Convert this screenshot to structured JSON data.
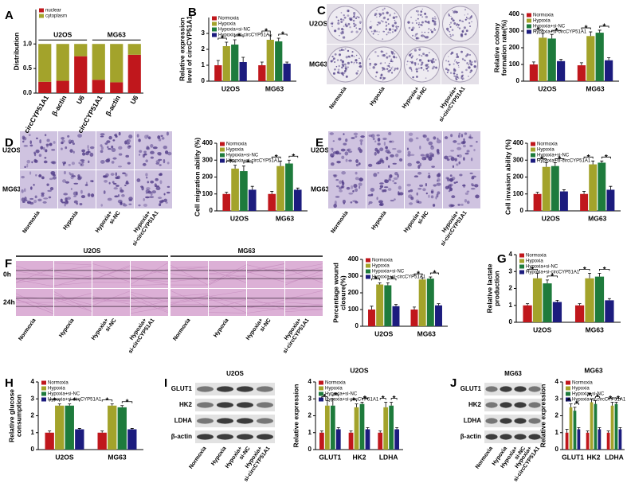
{
  "panel_labels": [
    "A",
    "B",
    "C",
    "D",
    "E",
    "F",
    "G",
    "H",
    "I",
    "J"
  ],
  "images": {
    "C": {
      "rows": [
        "U2OS",
        "MG63"
      ],
      "columns": [
        [
          "Normoxia"
        ],
        [
          "Hypoxia"
        ],
        [
          "Hypoxia+",
          "si-NC"
        ],
        [
          "Hypoxia+",
          "si-circCYP51A1"
        ]
      ]
    },
    "D": {
      "rows": [
        "U2OS",
        "MG63"
      ],
      "columns": [
        [
          "Normoxia"
        ],
        [
          "Hypoxia"
        ],
        [
          "Hypoxia+",
          "si-NC"
        ],
        [
          "Hypoxia+",
          "si-circCYP51A1"
        ]
      ]
    },
    "E": {
      "rows": [
        "U2OS",
        "MG63"
      ],
      "columns": [
        [
          "Normoxia"
        ],
        [
          "Hypoxia"
        ],
        [
          "Hypoxia+",
          "si-NC"
        ],
        [
          "Hypoxia+",
          "si-circCYP51A1"
        ]
      ]
    },
    "F": {
      "groups": [
        "U2OS",
        "MG63"
      ],
      "rows": [
        "0h",
        "24h"
      ],
      "columns": [
        [
          "Normoxia"
        ],
        [
          "Hypoxia"
        ],
        [
          "Hypoxia+",
          "si-NC"
        ],
        [
          "Hypoxia+",
          "si-circCYP51A1"
        ],
        [
          "Normoxia"
        ],
        [
          "Hypoxia"
        ],
        [
          "Hypoxia+",
          "si-NC"
        ],
        [
          "Hypoxia+",
          "si-circCYP51A1"
        ]
      ]
    },
    "I": {
      "title": "U2OS",
      "rows": [
        "GLUT1",
        "HK2",
        "LDHA",
        "β-actin"
      ],
      "columns": [
        [
          "Normoxia"
        ],
        [
          "Hypoxia"
        ],
        [
          "Hypoxia+",
          "si-NC"
        ],
        [
          "Hypoxia+",
          "si-circCYP51A1"
        ]
      ]
    },
    "J": {
      "title": "MG63",
      "rows": [
        "GLUT1",
        "HK2",
        "LDHA",
        "β-actin"
      ],
      "columns": [
        [
          "Normoxia"
        ],
        [
          "Hypoxia"
        ],
        [
          "Hypoxia+",
          "si-NC"
        ],
        [
          "Hypoxia+",
          "si-circCYP51A1"
        ]
      ]
    }
  },
  "chart_data": [
    {
      "type": "stacked_bar",
      "ylabel": [
        "Distribution"
      ],
      "categories": [
        "circCYP51A1",
        "β-actin",
        "U6",
        "circCYP51A1",
        "β-actin",
        "U6"
      ],
      "groups": [
        "U2OS",
        "MG63"
      ],
      "legend": "upper left",
      "series": [
        {
          "name": "nuclear",
          "color": "#c0171c",
          "values": [
            0.23,
            0.25,
            0.75,
            0.27,
            0.22,
            0.78
          ]
        },
        {
          "name": "cytoplasm",
          "color": "#a3a32b",
          "values": [
            0.77,
            0.75,
            0.25,
            0.73,
            0.78,
            0.22
          ]
        }
      ],
      "ylim": [
        0,
        1.7
      ],
      "yticks": [
        {
          "value": 0,
          "label": "0.0"
        },
        {
          "value": 0.5,
          "label": "0.5"
        },
        {
          "value": 1,
          "label": "1.0"
        }
      ]
    },
    {
      "type": "bar",
      "ylabel": [
        "Relative expression",
        "level of circCYP51A1"
      ],
      "categories": [
        "U2OS",
        "MG63"
      ],
      "legend": "upper left",
      "series": [
        {
          "name": "Normoxia",
          "color": "#c0171c",
          "values": [
            1.0,
            1.0
          ],
          "errors": [
            0.3,
            0.2
          ]
        },
        {
          "name": "Hypoxia",
          "color": "#a3a32b",
          "values": [
            2.2,
            2.6
          ],
          "errors": [
            0.25,
            0.3
          ]
        },
        {
          "name": "Hypoxia+si-NC",
          "color": "#1e7b3c",
          "values": [
            2.3,
            2.5
          ],
          "errors": [
            0.3,
            0.2
          ]
        },
        {
          "name": "Hypoxia+si-circCYP51A1",
          "color": "#1c1c7e",
          "values": [
            1.2,
            1.1
          ],
          "errors": [
            0.3,
            0.1
          ]
        }
      ],
      "significance": [
        "*",
        "*",
        "*",
        "*"
      ],
      "ylim": [
        0,
        4
      ],
      "yticks": [
        0,
        1,
        2,
        3
      ]
    },
    {
      "type": "bar",
      "ylabel": [
        "Relative colony",
        "formation rate(%)"
      ],
      "categories": [
        "U2OS",
        "MG63"
      ],
      "legend": "upper left",
      "series": [
        {
          "name": "Normoxia",
          "color": "#c0171c",
          "values": [
            100,
            95
          ],
          "errors": [
            15,
            15
          ]
        },
        {
          "name": "Hypoxia",
          "color": "#a3a32b",
          "values": [
            260,
            270
          ],
          "errors": [
            25,
            25
          ]
        },
        {
          "name": "Hypoxia+si-NC",
          "color": "#1e7b3c",
          "values": [
            255,
            290
          ],
          "errors": [
            25,
            15
          ]
        },
        {
          "name": "Hypoxia+si-circCYP51A1",
          "color": "#1c1c7e",
          "values": [
            120,
            125
          ],
          "errors": [
            10,
            15
          ]
        }
      ],
      "significance": [
        "*",
        "*",
        "*",
        "*"
      ],
      "ylim": [
        0,
        400
      ],
      "yticks": [
        0,
        100,
        200,
        300,
        400
      ]
    },
    {
      "type": "bar",
      "ylabel": [
        "Cell migration ability (%)"
      ],
      "categories": [
        "U2OS",
        "MG63"
      ],
      "legend": "upper left",
      "series": [
        {
          "name": "Normoxia",
          "color": "#c0171c",
          "values": [
            100,
            100
          ],
          "errors": [
            10,
            15
          ]
        },
        {
          "name": "Hypoxia",
          "color": "#a3a32b",
          "values": [
            250,
            265
          ],
          "errors": [
            20,
            30
          ]
        },
        {
          "name": "Hypoxia+si-NC",
          "color": "#1e7b3c",
          "values": [
            235,
            280
          ],
          "errors": [
            30,
            20
          ]
        },
        {
          "name": "Hypoxia+si-circCYP51A1",
          "color": "#1c1c7e",
          "values": [
            125,
            125
          ],
          "errors": [
            20,
            10
          ]
        }
      ],
      "significance": [
        "*",
        "*",
        "*",
        "*"
      ],
      "ylim": [
        0,
        400
      ],
      "yticks": [
        0,
        100,
        200,
        300,
        400
      ]
    },
    {
      "type": "bar",
      "ylabel": [
        "Cell invasion ability (%)"
      ],
      "categories": [
        "U2OS",
        "MG63"
      ],
      "legend": "upper left",
      "series": [
        {
          "name": "Normoxia",
          "color": "#c0171c",
          "values": [
            100,
            100
          ],
          "errors": [
            10,
            15
          ]
        },
        {
          "name": "Hypoxia",
          "color": "#a3a32b",
          "values": [
            260,
            275
          ],
          "errors": [
            25,
            20
          ]
        },
        {
          "name": "Hypoxia+si-NC",
          "color": "#1e7b3c",
          "values": [
            265,
            285
          ],
          "errors": [
            20,
            10
          ]
        },
        {
          "name": "Hypoxia+si-circCYP51A1",
          "color": "#1c1c7e",
          "values": [
            115,
            125
          ],
          "errors": [
            10,
            20
          ]
        }
      ],
      "significance": [
        "*",
        "*",
        "*",
        "*"
      ],
      "ylim": [
        0,
        400
      ],
      "yticks": [
        0,
        100,
        200,
        300,
        400
      ]
    },
    {
      "type": "bar",
      "ylabel": [
        "Percentage wound",
        "closure(%)"
      ],
      "categories": [
        "U2OS",
        "MG63"
      ],
      "legend": "upper left",
      "series": [
        {
          "name": "Normoxia",
          "color": "#c0171c",
          "values": [
            100,
            100
          ],
          "errors": [
            20,
            15
          ]
        },
        {
          "name": "Hypoxia",
          "color": "#a3a32b",
          "values": [
            250,
            280
          ],
          "errors": [
            10,
            10
          ]
        },
        {
          "name": "Hypoxia+si-NC",
          "color": "#1e7b3c",
          "values": [
            245,
            285
          ],
          "errors": [
            15,
            10
          ]
        },
        {
          "name": "Hypoxia+si-circCYP51A1",
          "color": "#1c1c7e",
          "values": [
            120,
            125
          ],
          "errors": [
            10,
            10
          ]
        }
      ],
      "significance": [
        "*",
        "*",
        "*",
        "*"
      ],
      "ylim": [
        0,
        400
      ],
      "yticks": [
        0,
        100,
        200,
        300,
        400
      ]
    },
    {
      "type": "bar",
      "ylabel": [
        "Relative lactate",
        "production"
      ],
      "categories": [
        "U2OS",
        "MG63"
      ],
      "legend": "upper left",
      "series": [
        {
          "name": "Normoxia",
          "color": "#c0171c",
          "values": [
            1.0,
            1.0
          ],
          "errors": [
            0.1,
            0.1
          ]
        },
        {
          "name": "Hypoxia",
          "color": "#a3a32b",
          "values": [
            2.6,
            2.6
          ],
          "errors": [
            0.3,
            0.3
          ]
        },
        {
          "name": "Hypoxia+si-NC",
          "color": "#1e7b3c",
          "values": [
            2.3,
            2.7
          ],
          "errors": [
            0.2,
            0.2
          ]
        },
        {
          "name": "Hypoxia+si-circCYP51A1",
          "color": "#1c1c7e",
          "values": [
            1.2,
            1.3
          ],
          "errors": [
            0.1,
            0.1
          ]
        }
      ],
      "significance": [
        "*",
        "*",
        "*",
        "*"
      ],
      "ylim": [
        0,
        4
      ],
      "yticks": [
        0,
        1,
        2,
        3,
        4
      ]
    },
    {
      "type": "bar",
      "ylabel": [
        "Relative glucose",
        "consumption"
      ],
      "categories": [
        "U2OS",
        "MG63"
      ],
      "legend": "upper left",
      "series": [
        {
          "name": "Normoxia",
          "color": "#c0171c",
          "values": [
            1.0,
            1.0
          ],
          "errors": [
            0.1,
            0.1
          ]
        },
        {
          "name": "Hypoxia",
          "color": "#a3a32b",
          "values": [
            2.6,
            2.6
          ],
          "errors": [
            0.1,
            0.1
          ]
        },
        {
          "name": "Hypoxia+si-NC",
          "color": "#1e7b3c",
          "values": [
            2.6,
            2.5
          ],
          "errors": [
            0.1,
            0.1
          ]
        },
        {
          "name": "Hypoxia+si-circCYP51A1",
          "color": "#1c1c7e",
          "values": [
            1.2,
            1.2
          ],
          "errors": [
            0.05,
            0.05
          ]
        }
      ],
      "significance": [
        "*",
        "*",
        "*",
        "*"
      ],
      "ylim": [
        0,
        4
      ],
      "yticks": [
        0,
        1,
        2,
        3,
        4
      ]
    },
    {
      "type": "bar",
      "title": "U2OS",
      "ylabel": [
        "Relative expression"
      ],
      "categories": [
        "GLUT1",
        "HK2",
        "LDHA"
      ],
      "legend": "upper left",
      "series": [
        {
          "name": "Normoxia",
          "color": "#c0171c",
          "values": [
            1.0,
            1.0,
            1.0
          ],
          "errors": [
            0.1,
            0.1,
            0.1
          ]
        },
        {
          "name": "Hypoxia",
          "color": "#a3a32b",
          "values": [
            2.6,
            2.5,
            2.5
          ],
          "errors": [
            0.3,
            0.2,
            0.3
          ]
        },
        {
          "name": "Hypoxia+si-NC",
          "color": "#1e7b3c",
          "values": [
            2.6,
            2.7,
            2.6
          ],
          "errors": [
            0.4,
            0.1,
            0.2
          ]
        },
        {
          "name": "Hypoxia+si-circCYP51A1",
          "color": "#1c1c7e",
          "values": [
            1.2,
            1.2,
            1.2
          ],
          "errors": [
            0.1,
            0.1,
            0.1
          ]
        }
      ],
      "significance": [
        "*",
        "*",
        "*",
        "*",
        "*",
        "*"
      ],
      "ylim": [
        0,
        4
      ],
      "yticks": [
        0,
        1,
        2,
        3,
        4
      ]
    },
    {
      "type": "bar",
      "title": "MG63",
      "ylabel": [
        "Relative expression"
      ],
      "categories": [
        "GLUT1",
        "HK2",
        "LDHA"
      ],
      "legend": "upper left",
      "series": [
        {
          "name": "Normoxia",
          "color": "#c0171c",
          "values": [
            1.0,
            1.0,
            1.0
          ],
          "errors": [
            0.2,
            0.1,
            0.1
          ]
        },
        {
          "name": "Hypoxia",
          "color": "#a3a32b",
          "values": [
            2.5,
            2.8,
            2.6
          ],
          "errors": [
            0.2,
            0.2,
            0.2
          ]
        },
        {
          "name": "Hypoxia+si-NC",
          "color": "#1e7b3c",
          "values": [
            2.3,
            2.7,
            2.7
          ],
          "errors": [
            0.2,
            0.2,
            0.1
          ]
        },
        {
          "name": "Hypoxia+si-circCYP51A1",
          "color": "#1c1c7e",
          "values": [
            1.2,
            1.2,
            1.2
          ],
          "errors": [
            0.1,
            0.1,
            0.1
          ]
        }
      ],
      "significance": [
        "*",
        "*",
        "*",
        "*",
        "*",
        "*"
      ],
      "ylim": [
        0,
        4
      ],
      "yticks": [
        0,
        1,
        2,
        3,
        4
      ]
    }
  ]
}
